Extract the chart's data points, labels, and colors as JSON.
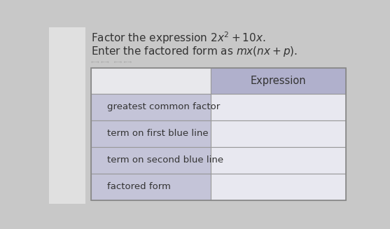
{
  "title_line1": "Factor the expression $2x^2 + 10x$.",
  "title_line2": "Enter the factored form as $mx(nx + p)$.",
  "page_bg": "#c8c8c8",
  "left_panel_bg": "#f0f0f0",
  "table_header_left_bg": "#e8e8ec",
  "table_header_right_bg": "#b0b0cc",
  "left_col_bg": "#c4c4d8",
  "right_col_bg": "#e8e8f0",
  "cell_border": "#999999",
  "row_labels": [
    "greatest common factor",
    "term on first blue line",
    "term on second blue line",
    "factored form"
  ],
  "col_header": "Expression",
  "text_color": "#333333",
  "label_fontsize": 9.5,
  "header_fontsize": 10.5
}
